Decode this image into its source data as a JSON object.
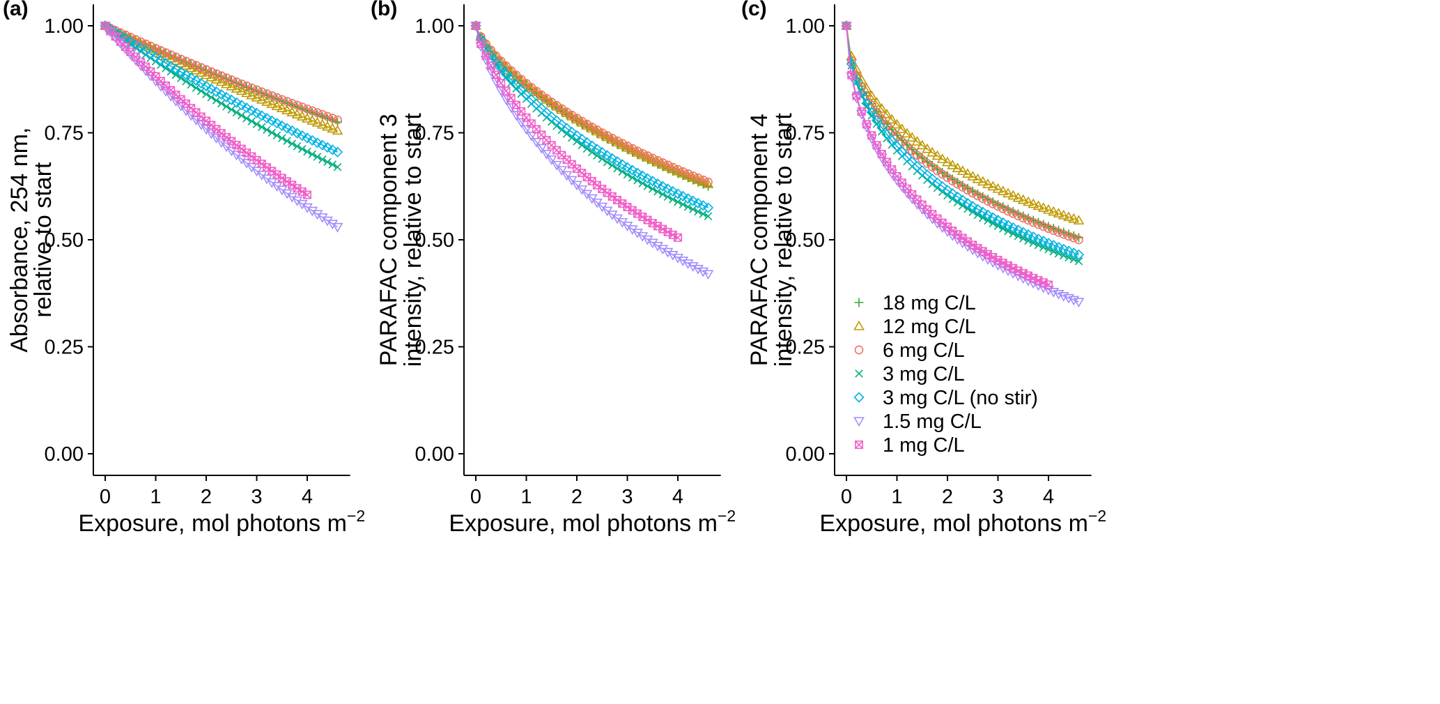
{
  "legend": {
    "position": "bottom-right of panel (c)",
    "entries": [
      {
        "label": "18 mg C/L",
        "color": "#35a828",
        "marker": "plus"
      },
      {
        "label": "12 mg C/L",
        "color": "#bf9a00",
        "marker": "triangle-up"
      },
      {
        "label": "6 mg C/L",
        "color": "#f26f66",
        "marker": "circle"
      },
      {
        "label": "3 mg C/L",
        "color": "#00ad7f",
        "marker": "x"
      },
      {
        "label": "3 mg C/L (no stir)",
        "color": "#00b3e3",
        "marker": "diamond"
      },
      {
        "label": "1.5 mg C/L",
        "color": "#a48dfc",
        "marker": "triangle-down"
      },
      {
        "label": "1 mg C/L",
        "color": "#f060c8",
        "marker": "square-x"
      }
    ]
  },
  "chart_data": [
    {
      "type": "scatter",
      "panel_label": "(a)",
      "xlabel": "Exposure, mol photons m",
      "xlabel_sup": "−2",
      "ylabel_lines": [
        "Absorbance, 254 nm,",
        "relative to start"
      ],
      "xlim": [
        -0.2,
        4.85
      ],
      "ylim": [
        -0.1,
        1.05
      ],
      "x_ticks": [
        0,
        1,
        2,
        3,
        4
      ],
      "x_tick_labels": [
        "0",
        "1",
        "2",
        "3",
        "4"
      ],
      "y_ticks": [
        0,
        0.25,
        0.5,
        0.75,
        1
      ],
      "y_tick_labels": [
        "0.00",
        "0.25",
        "0.50",
        "0.75",
        "1.00"
      ],
      "grid": false,
      "legend": false,
      "series": [
        {
          "name": "18 mg C/L",
          "x_max": 4.6,
          "y_end": 0.775,
          "n_points": 47,
          "fit_line": true
        },
        {
          "name": "12 mg C/L",
          "x_max": 4.6,
          "y_end": 0.755,
          "n_points": 47,
          "fit_line": true
        },
        {
          "name": "6 mg C/L",
          "x_max": 4.6,
          "y_end": 0.78,
          "n_points": 47,
          "fit_line": true
        },
        {
          "name": "3 mg C/L",
          "x_max": 4.6,
          "y_end": 0.67,
          "n_points": 47,
          "fit_line": true
        },
        {
          "name": "3 mg C/L (no stir)",
          "x_max": 4.6,
          "y_end": 0.705,
          "n_points": 47,
          "fit_line": true
        },
        {
          "name": "1.5 mg C/L",
          "x_max": 4.6,
          "y_end": 0.53,
          "n_points": 47,
          "fit_line": true
        },
        {
          "name": "1 mg C/L",
          "x_max": 4.0,
          "y_end": 0.605,
          "n_points": 41,
          "fit_line": true
        }
      ]
    },
    {
      "type": "scatter",
      "panel_label": "(b)",
      "xlabel": "Exposure, mol photons m",
      "xlabel_sup": "−2",
      "ylabel_lines": [
        "PARAFAC component 3",
        "intensity, relative to start"
      ],
      "xlim": [
        -0.2,
        4.85
      ],
      "ylim": [
        -0.1,
        1.05
      ],
      "x_ticks": [
        0,
        1,
        2,
        3,
        4
      ],
      "x_tick_labels": [
        "0",
        "1",
        "2",
        "3",
        "4"
      ],
      "y_ticks": [
        0,
        0.25,
        0.5,
        0.75,
        1
      ],
      "y_tick_labels": [
        "0.00",
        "0.25",
        "0.50",
        "0.75",
        "1.00"
      ],
      "grid": false,
      "legend": false,
      "series": [
        {
          "name": "18 mg C/L",
          "x_max": 4.6,
          "y_end": 0.625,
          "n_points": 47,
          "fit_line": true
        },
        {
          "name": "12 mg C/L",
          "x_max": 4.6,
          "y_end": 0.63,
          "n_points": 47,
          "fit_line": true
        },
        {
          "name": "6 mg C/L",
          "x_max": 4.6,
          "y_end": 0.635,
          "n_points": 47,
          "fit_line": true
        },
        {
          "name": "3 mg C/L",
          "x_max": 4.6,
          "y_end": 0.555,
          "n_points": 47,
          "fit_line": true
        },
        {
          "name": "3 mg C/L (no stir)",
          "x_max": 4.6,
          "y_end": 0.575,
          "n_points": 47,
          "fit_line": true
        },
        {
          "name": "1.5 mg C/L",
          "x_max": 4.6,
          "y_end": 0.42,
          "n_points": 47,
          "fit_line": true
        },
        {
          "name": "1 mg C/L",
          "x_max": 4.0,
          "y_end": 0.505,
          "n_points": 41,
          "fit_line": true
        }
      ]
    },
    {
      "type": "scatter",
      "panel_label": "(c)",
      "xlabel": "Exposure, mol photons m",
      "xlabel_sup": "−2",
      "ylabel_lines": [
        "PARAFAC component 4",
        "intensity, relative to start"
      ],
      "xlim": [
        -0.2,
        4.85
      ],
      "ylim": [
        -0.1,
        1.05
      ],
      "x_ticks": [
        0,
        1,
        2,
        3,
        4
      ],
      "x_tick_labels": [
        "0",
        "1",
        "2",
        "3",
        "4"
      ],
      "y_ticks": [
        0,
        0.25,
        0.5,
        0.75,
        1
      ],
      "y_tick_labels": [
        "0.00",
        "0.25",
        "0.50",
        "0.75",
        "1.00"
      ],
      "grid": false,
      "legend": true,
      "series": [
        {
          "name": "18 mg C/L",
          "x_max": 4.6,
          "y_end": 0.505,
          "n_points": 47,
          "fit_line": true
        },
        {
          "name": "12 mg C/L",
          "x_max": 4.6,
          "y_end": 0.545,
          "n_points": 47,
          "fit_line": true
        },
        {
          "name": "6 mg C/L",
          "x_max": 4.6,
          "y_end": 0.5,
          "n_points": 47,
          "fit_line": true
        },
        {
          "name": "3 mg C/L",
          "x_max": 4.6,
          "y_end": 0.45,
          "n_points": 47,
          "fit_line": true
        },
        {
          "name": "3 mg C/L (no stir)",
          "x_max": 4.6,
          "y_end": 0.465,
          "n_points": 47,
          "fit_line": true
        },
        {
          "name": "1.5 mg C/L",
          "x_max": 4.6,
          "y_end": 0.355,
          "n_points": 47,
          "fit_line": true
        },
        {
          "name": "1 mg C/L",
          "x_max": 4.0,
          "y_end": 0.395,
          "n_points": 41,
          "fit_line": true
        }
      ]
    }
  ]
}
